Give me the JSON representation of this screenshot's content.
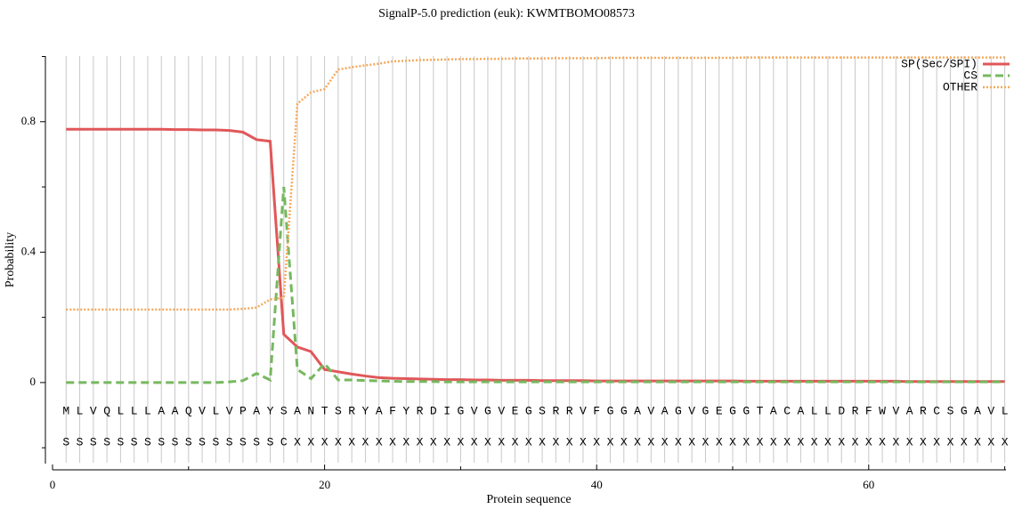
{
  "chart_data": {
    "type": "line",
    "title": "SignalP-5.0 prediction (euk):  KWMTBOMO08573",
    "x_label": "Protein sequence",
    "y_label": "Probability",
    "x": [
      1,
      2,
      3,
      4,
      5,
      6,
      7,
      8,
      9,
      10,
      11,
      12,
      13,
      14,
      15,
      16,
      17,
      18,
      19,
      20,
      21,
      22,
      23,
      24,
      25,
      26,
      27,
      28,
      29,
      30,
      31,
      32,
      33,
      34,
      35,
      36,
      37,
      38,
      39,
      40,
      41,
      42,
      43,
      44,
      45,
      46,
      47,
      48,
      49,
      50,
      51,
      52,
      53,
      54,
      55,
      56,
      57,
      58,
      59,
      60,
      61,
      62,
      63,
      64,
      65,
      66,
      67,
      68,
      69,
      70
    ],
    "sequence": [
      "M",
      "L",
      "V",
      "Q",
      "L",
      "L",
      "L",
      "A",
      "A",
      "Q",
      "V",
      "L",
      "V",
      "P",
      "A",
      "Y",
      "S",
      "A",
      "N",
      "T",
      "S",
      "R",
      "Y",
      "A",
      "F",
      "Y",
      "R",
      "D",
      "I",
      "G",
      "V",
      "G",
      "V",
      "E",
      "G",
      "S",
      "R",
      "R",
      "V",
      "F",
      "G",
      "G",
      "A",
      "V",
      "A",
      "G",
      "V",
      "G",
      "E",
      "G",
      "G",
      "T",
      "A",
      "C",
      "A",
      "L",
      "L",
      "D",
      "R",
      "F",
      "W",
      "V",
      "A",
      "R",
      "C",
      "S",
      "G",
      "A",
      "V",
      "L"
    ],
    "annotation": [
      "S",
      "S",
      "S",
      "S",
      "S",
      "S",
      "S",
      "S",
      "S",
      "S",
      "S",
      "S",
      "S",
      "S",
      "S",
      "S",
      "C",
      "X",
      "X",
      "X",
      "X",
      "X",
      "X",
      "X",
      "X",
      "X",
      "X",
      "X",
      "X",
      "X",
      "X",
      "X",
      "X",
      "X",
      "X",
      "X",
      "X",
      "X",
      "X",
      "X",
      "X",
      "X",
      "X",
      "X",
      "X",
      "X",
      "X",
      "X",
      "X",
      "X",
      "X",
      "X",
      "X",
      "X",
      "X",
      "X",
      "X",
      "X",
      "X",
      "X",
      "X",
      "X",
      "X",
      "X",
      "X",
      "X",
      "X",
      "X",
      "X",
      "X"
    ],
    "series": [
      {
        "name": "SP(Sec/SPI)",
        "color": "#e15759",
        "style": "solid",
        "values": [
          0.777,
          0.777,
          0.777,
          0.777,
          0.777,
          0.777,
          0.777,
          0.777,
          0.776,
          0.776,
          0.775,
          0.775,
          0.773,
          0.768,
          0.745,
          0.74,
          0.148,
          0.109,
          0.095,
          0.04,
          0.033,
          0.026,
          0.02,
          0.015,
          0.013,
          0.012,
          0.011,
          0.01,
          0.009,
          0.009,
          0.008,
          0.008,
          0.007,
          0.007,
          0.007,
          0.006,
          0.006,
          0.006,
          0.006,
          0.005,
          0.005,
          0.005,
          0.005,
          0.005,
          0.005,
          0.005,
          0.005,
          0.005,
          0.005,
          0.005,
          0.004,
          0.004,
          0.004,
          0.004,
          0.004,
          0.004,
          0.004,
          0.004,
          0.004,
          0.004,
          0.004,
          0.004,
          0.003,
          0.003,
          0.003,
          0.003,
          0.003,
          0.003,
          0.003,
          0.003
        ]
      },
      {
        "name": "CS",
        "color": "#76b85e",
        "style": "dashed",
        "values": [
          0,
          0,
          0,
          0,
          0,
          0,
          0,
          0,
          0,
          0,
          0,
          0,
          0.002,
          0.006,
          0.028,
          0.008,
          0.6,
          0.04,
          0.012,
          0.058,
          0.008,
          0.008,
          0.006,
          0.005,
          0.004,
          0.003,
          0.003,
          0.003,
          0.002,
          0.002,
          0.002,
          0.002,
          0.002,
          0.002,
          0.002,
          0.002,
          0.002,
          0.002,
          0.002,
          0.002,
          0.002,
          0.002,
          0.002,
          0.002,
          0.002,
          0.002,
          0.002,
          0.002,
          0.002,
          0.002,
          0.002,
          0.002,
          0.002,
          0.002,
          0.002,
          0.002,
          0.002,
          0.002,
          0.002,
          0.002,
          0.002,
          0.002,
          0.002,
          0.002,
          0.002,
          0.002,
          0.002,
          0.002,
          0.002,
          0.002
        ]
      },
      {
        "name": "OTHER",
        "color": "#f5a95b",
        "style": "dotted",
        "values": [
          0.224,
          0.224,
          0.224,
          0.224,
          0.224,
          0.224,
          0.224,
          0.224,
          0.224,
          0.224,
          0.224,
          0.224,
          0.224,
          0.226,
          0.23,
          0.255,
          0.26,
          0.855,
          0.89,
          0.9,
          0.96,
          0.967,
          0.973,
          0.978,
          0.985,
          0.987,
          0.989,
          0.99,
          0.991,
          0.992,
          0.992,
          0.993,
          0.993,
          0.994,
          0.994,
          0.994,
          0.995,
          0.995,
          0.995,
          0.995,
          0.996,
          0.996,
          0.996,
          0.996,
          0.996,
          0.996,
          0.996,
          0.996,
          0.996,
          0.996,
          0.997,
          0.997,
          0.997,
          0.997,
          0.997,
          0.997,
          0.997,
          0.997,
          0.997,
          0.997,
          0.997,
          0.997,
          0.997,
          0.997,
          0.997,
          0.997,
          0.997,
          0.997,
          0.997,
          0.997
        ]
      }
    ],
    "xlim": [
      0,
      70
    ],
    "xticks": [
      0,
      20,
      40,
      60
    ],
    "xminorticks": [
      10,
      30,
      50,
      70
    ],
    "ylim": [
      -0.25,
      1.0
    ],
    "yticks": [
      0,
      0.4,
      0.8
    ],
    "yminorticks": [
      -0.2,
      0.2,
      0.6,
      1.0
    ],
    "grid": true,
    "legend": "upper right"
  }
}
